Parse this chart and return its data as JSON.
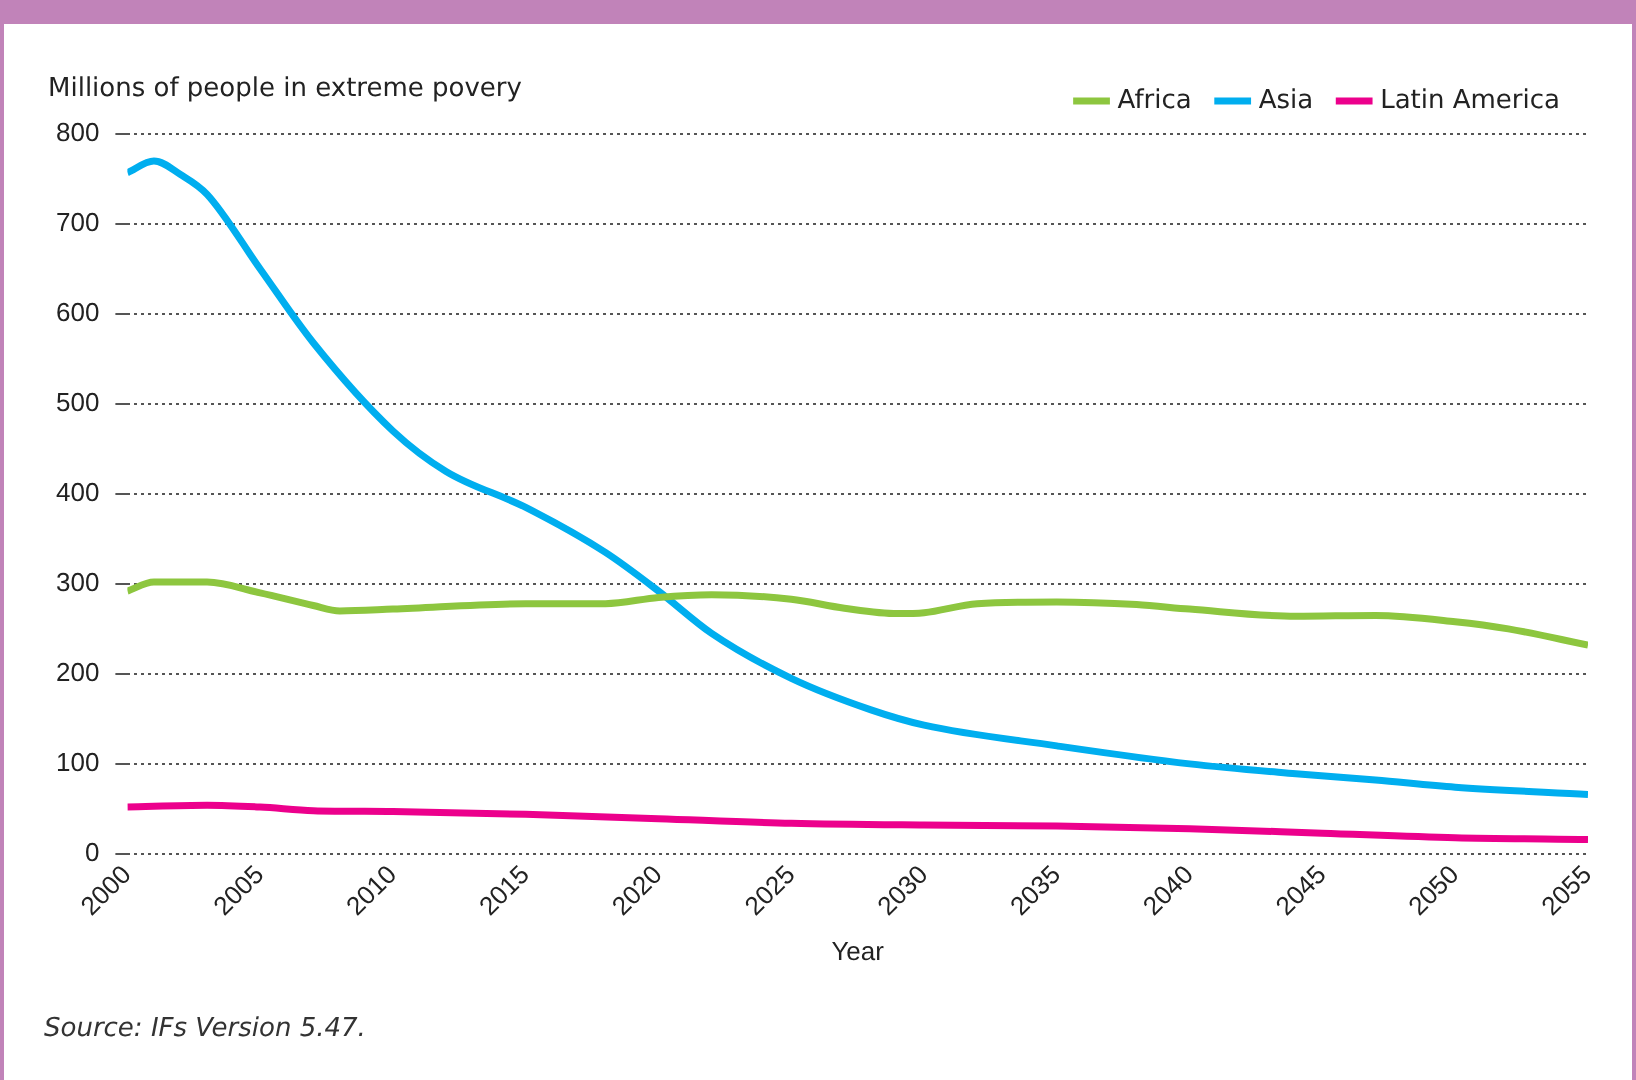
{
  "chart_data": {
    "type": "line",
    "ylabel": "Millions of people in extreme povery",
    "xlabel": "Year",
    "annotations": [
      "Source: IFs Version 5.47."
    ],
    "xlim": [
      2000,
      2055
    ],
    "xticks": [
      2000,
      2005,
      2010,
      2015,
      2020,
      2025,
      2030,
      2035,
      2040,
      2045,
      2050,
      2055
    ],
    "ylim": [
      0,
      800
    ],
    "yticks": [
      0,
      100,
      200,
      300,
      400,
      500,
      600,
      700,
      800
    ],
    "grid": "y",
    "legend": "top right",
    "marker": "none",
    "line_style": "solid",
    "series": [
      {
        "name": "Africa",
        "color": "#8dc63f",
        "x": [
          2000,
          2001,
          2003,
          2005,
          2007,
          2008,
          2010,
          2015,
          2018,
          2020,
          2022,
          2025,
          2027,
          2029,
          2030,
          2032,
          2035,
          2038,
          2040,
          2044,
          2047,
          2050,
          2052,
          2055
        ],
        "values": [
          292,
          302,
          302,
          290,
          276,
          270,
          272,
          278,
          278,
          285,
          288,
          283,
          273,
          267,
          268,
          278,
          280,
          277,
          272,
          264,
          265,
          258,
          250,
          232
        ]
      },
      {
        "name": "Asia",
        "color": "#00aeef",
        "x": [
          2000,
          2001,
          2002,
          2003,
          2005,
          2007,
          2010,
          2012,
          2015,
          2018,
          2020,
          2022,
          2025,
          2028,
          2030,
          2035,
          2040,
          2044,
          2047,
          2050,
          2055
        ],
        "values": [
          757,
          770,
          755,
          733,
          650,
          568,
          470,
          425,
          385,
          335,
          292,
          245,
          195,
          160,
          143,
          120,
          100,
          89,
          82,
          74,
          66
        ]
      },
      {
        "name": "Latin America",
        "color": "#ec008c",
        "x": [
          2000,
          2003,
          2005,
          2007,
          2010,
          2015,
          2020,
          2025,
          2030,
          2035,
          2040,
          2045,
          2050,
          2055
        ],
        "values": [
          52,
          54,
          52,
          48,
          47,
          44,
          39,
          34,
          32,
          31,
          28,
          23,
          18,
          16
        ]
      }
    ]
  }
}
